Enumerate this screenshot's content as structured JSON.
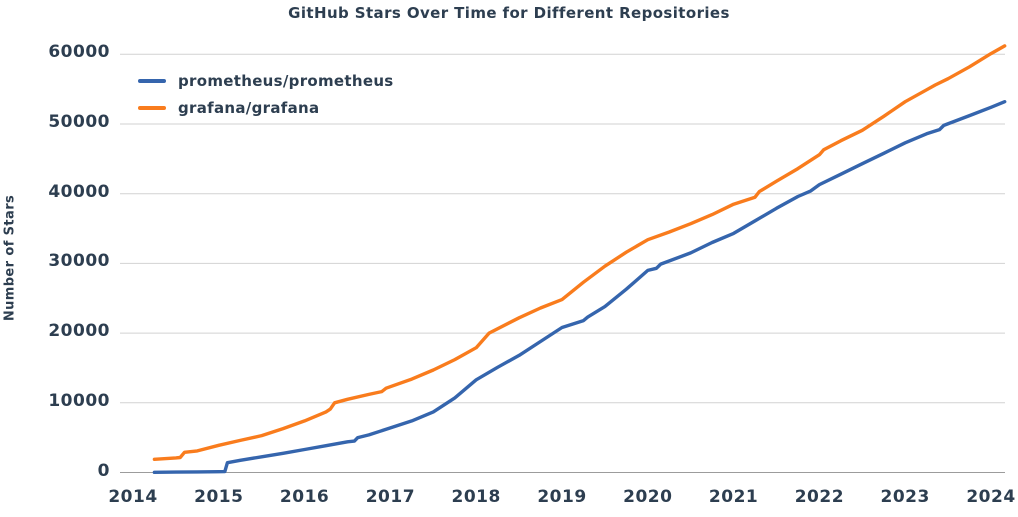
{
  "colors": {
    "text": "#2d3e50",
    "background": "#ffffff",
    "gridline": "#d2d2d2",
    "axis_line": "#9c9c9c",
    "prometheus_blue": "#3565ad",
    "grafana_orange": "#f97c1d"
  },
  "chart_data": {
    "type": "line",
    "title": "GitHub Stars Over Time for Different Repositories",
    "xlabel": "",
    "ylabel": "Number of Stars",
    "x_ticks": [
      2014,
      2015,
      2016,
      2017,
      2018,
      2019,
      2020,
      2021,
      2022,
      2023,
      2024
    ],
    "y_ticks": [
      0,
      10000,
      20000,
      30000,
      40000,
      50000,
      60000
    ],
    "xlim": [
      2013.85,
      2024.33
    ],
    "ylim": [
      0,
      62500
    ],
    "grid": "horizontal-only",
    "legend_position": "upper-left-inside",
    "series": [
      {
        "key": "prometheus",
        "name": "prometheus/prometheus",
        "color": "#3565ad",
        "x": [
          2014.25,
          2014.5,
          2014.75,
          2015.0,
          2015.07,
          2015.1,
          2015.25,
          2015.5,
          2015.75,
          2016.0,
          2016.25,
          2016.5,
          2016.58,
          2016.62,
          2016.75,
          2017.0,
          2017.25,
          2017.5,
          2017.75,
          2018.0,
          2018.25,
          2018.5,
          2018.75,
          2019.0,
          2019.25,
          2019.3,
          2019.5,
          2019.75,
          2020.0,
          2020.1,
          2020.15,
          2020.5,
          2020.75,
          2021.0,
          2021.25,
          2021.5,
          2021.75,
          2021.9,
          2022.0,
          2022.25,
          2022.5,
          2022.75,
          2023.0,
          2023.25,
          2023.4,
          2023.45,
          2023.75,
          2024.0,
          2024.16
        ],
        "y": [
          30,
          60,
          90,
          120,
          130,
          1400,
          1750,
          2250,
          2750,
          3300,
          3850,
          4400,
          4500,
          5000,
          5400,
          6400,
          7400,
          8700,
          10700,
          13300,
          15100,
          16800,
          18800,
          20800,
          21800,
          22300,
          23800,
          26300,
          29000,
          29300,
          29900,
          31500,
          33000,
          34300,
          36100,
          37900,
          39600,
          40400,
          41300,
          42800,
          44300,
          45800,
          47300,
          48600,
          49200,
          49800,
          51200,
          52400,
          53200
        ]
      },
      {
        "key": "grafana",
        "name": "grafana/grafana",
        "color": "#f97c1d",
        "x": [
          2014.25,
          2014.5,
          2014.55,
          2014.6,
          2014.75,
          2015.0,
          2015.25,
          2015.5,
          2015.75,
          2016.0,
          2016.25,
          2016.3,
          2016.35,
          2016.5,
          2016.75,
          2016.9,
          2016.95,
          2017.25,
          2017.5,
          2017.75,
          2018.0,
          2018.15,
          2018.5,
          2018.75,
          2019.0,
          2019.25,
          2019.5,
          2019.75,
          2020.0,
          2020.25,
          2020.5,
          2020.75,
          2021.0,
          2021.25,
          2021.3,
          2021.5,
          2021.75,
          2022.0,
          2022.05,
          2022.25,
          2022.5,
          2022.75,
          2023.0,
          2023.25,
          2023.35,
          2023.5,
          2023.75,
          2024.0,
          2024.16
        ],
        "y": [
          1900,
          2100,
          2150,
          2900,
          3100,
          3900,
          4600,
          5300,
          6300,
          7400,
          8700,
          9100,
          10000,
          10500,
          11200,
          11600,
          12100,
          13400,
          14700,
          16200,
          17900,
          20000,
          22200,
          23600,
          24800,
          27300,
          29600,
          31600,
          33400,
          34500,
          35700,
          37000,
          38500,
          39500,
          40300,
          41800,
          43600,
          45600,
          46300,
          47600,
          49100,
          51100,
          53200,
          54900,
          55600,
          56500,
          58200,
          60100,
          61200
        ]
      }
    ]
  }
}
